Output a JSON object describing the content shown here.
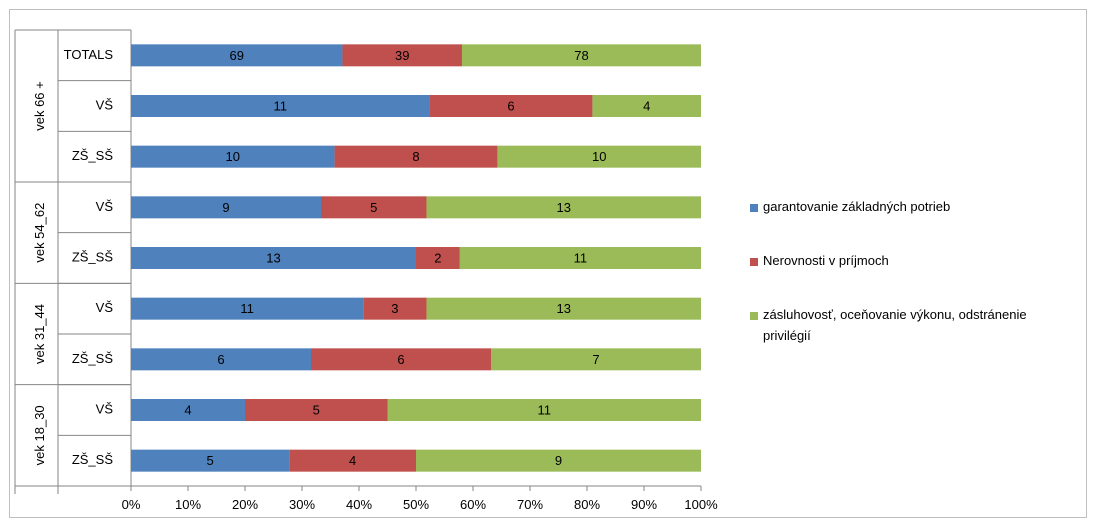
{
  "chart_data": {
    "type": "bar",
    "orientation": "horizontal",
    "stacking": "percent",
    "groups": [
      {
        "label": "vek 66 +",
        "rows": [
          "TOTALS",
          "VŠ",
          "ZŠ_SŠ"
        ]
      },
      {
        "label": "vek 54_62",
        "rows": [
          "VŠ",
          "ZŠ_SŠ"
        ]
      },
      {
        "label": "vek 31_44",
        "rows": [
          "VŠ",
          "ZŠ_SŠ"
        ]
      },
      {
        "label": "vek 18_30",
        "rows": [
          "VŠ",
          "ZŠ_SŠ"
        ]
      }
    ],
    "categories": [
      "TOTALS",
      "VŠ",
      "ZŠ_SŠ",
      "VŠ",
      "ZŠ_SŠ",
      "VŠ",
      "ZŠ_SŠ",
      "VŠ",
      "ZŠ_SŠ"
    ],
    "series": [
      {
        "name": "garantovanie základných potrieb",
        "color": "#4f81bd",
        "values": [
          69,
          11,
          10,
          9,
          13,
          11,
          6,
          4,
          5
        ]
      },
      {
        "name": "Nerovnosti v príjmoch",
        "color": "#c0504d",
        "values": [
          39,
          6,
          8,
          5,
          2,
          3,
          6,
          5,
          4
        ]
      },
      {
        "name": "zásluhovosť, oceňovanie výkonu, odstránenie privilégií",
        "color": "#9bbb59",
        "values": [
          78,
          4,
          10,
          13,
          11,
          13,
          7,
          11,
          9
        ]
      }
    ],
    "xaxis": {
      "tick_labels": [
        "0%",
        "10%",
        "20%",
        "30%",
        "40%",
        "50%",
        "60%",
        "70%",
        "80%",
        "90%",
        "100%"
      ],
      "range": [
        0,
        100
      ]
    },
    "grid": false,
    "legend_position": "right"
  }
}
